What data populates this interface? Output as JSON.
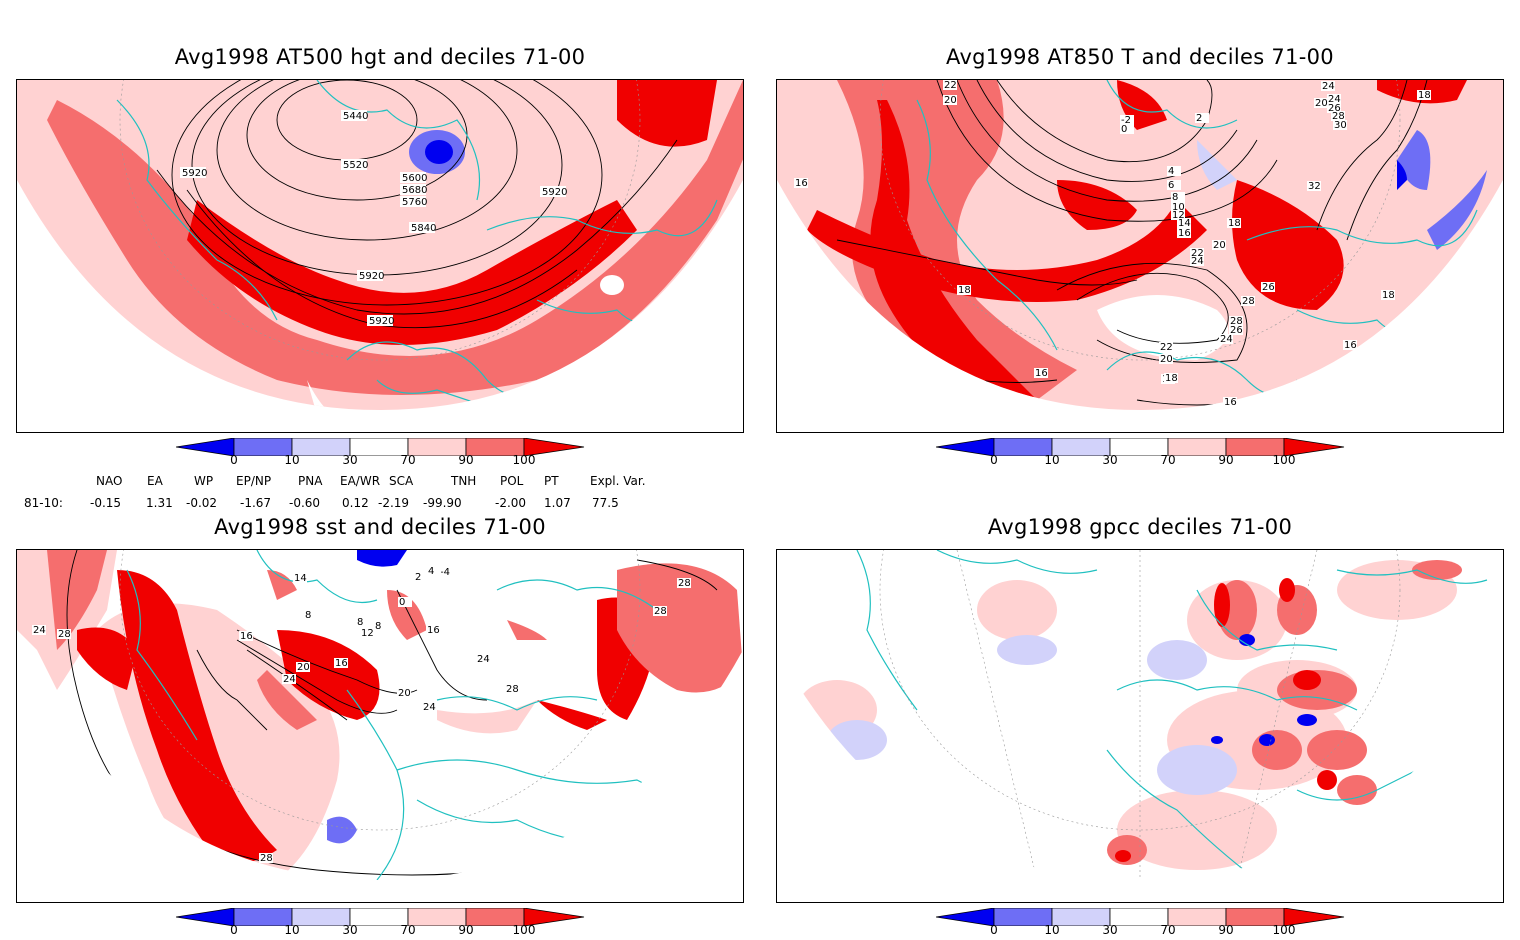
{
  "panels": [
    {
      "title": "Avg1998 AT500 hgt and deciles 71-00"
    },
    {
      "title": "Avg1998 AT850 T and deciles 71-00"
    },
    {
      "title": "Avg1998 sst and deciles 71-00"
    },
    {
      "title": "Avg1998 gpcc deciles 71-00"
    }
  ],
  "colorbar": {
    "labels": [
      "0",
      "10",
      "30",
      "70",
      "90",
      "100"
    ],
    "colors": [
      "#0000f0",
      "#6e6ef5",
      "#d2d2fa",
      "#ffffff",
      "#ffd2d2",
      "#f56e6e",
      "#f00000"
    ]
  },
  "indices": {
    "headers": [
      "NAO",
      "EA",
      "WP",
      "EP/NP",
      "PNA",
      "EA/WR",
      "SCA",
      "TNH",
      "POL",
      "PT",
      "Expl. Var."
    ],
    "row_label": "81-10:",
    "values": [
      "-0.15",
      "1.31",
      "-0.02",
      "-1.67",
      "-0.60",
      "0.12",
      "-2.19",
      "-99.90",
      "-2.00",
      "1.07",
      "77.5"
    ]
  },
  "contour_labels": {
    "hgt": [
      "5440",
      "5520",
      "5600",
      "5680",
      "5760",
      "5840",
      "5920",
      "5920",
      "5920",
      "5920"
    ],
    "t850": [
      "22",
      "20",
      "16",
      "18",
      "16",
      "-2",
      "0",
      "2",
      "4",
      "6",
      "8",
      "10",
      "12",
      "14",
      "16",
      "18",
      "20",
      "22",
      "24",
      "26",
      "28",
      "28",
      "26",
      "24",
      "22",
      "20",
      "18",
      "16",
      "18",
      "18",
      "16",
      "32",
      "24",
      "26",
      "28",
      "30",
      "20",
      "24",
      "18"
    ],
    "sst": [
      "24",
      "28",
      "16",
      "20",
      "24",
      "16",
      "8",
      "12",
      "8",
      "8",
      "14",
      "2",
      "0",
      "-4",
      "4",
      "20",
      "24",
      "24",
      "28",
      "28",
      "28",
      "16",
      "28"
    ]
  }
}
